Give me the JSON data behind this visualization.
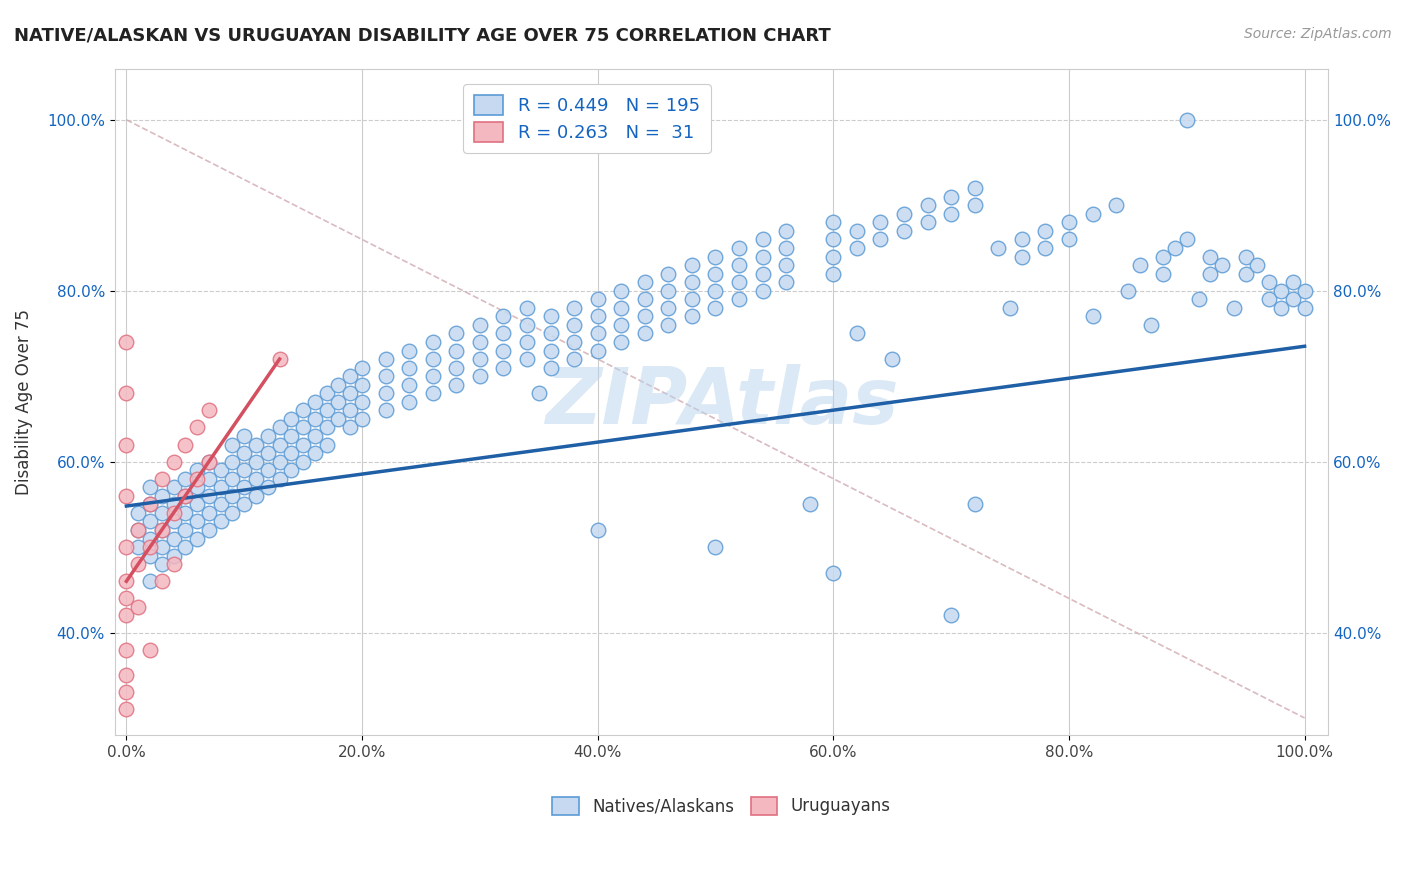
{
  "title": "NATIVE/ALASKAN VS URUGUAYAN DISABILITY AGE OVER 75 CORRELATION CHART",
  "source": "Source: ZipAtlas.com",
  "ylabel": "Disability Age Over 75",
  "xlim": [
    -0.01,
    1.02
  ],
  "ylim": [
    0.28,
    1.06
  ],
  "xtick_labels": [
    "0.0%",
    "20.0%",
    "40.0%",
    "60.0%",
    "80.0%",
    "100.0%"
  ],
  "xtick_values": [
    0.0,
    0.2,
    0.4,
    0.6,
    0.8,
    1.0
  ],
  "ytick_labels": [
    "40.0%",
    "60.0%",
    "80.0%",
    "100.0%"
  ],
  "ytick_values": [
    0.4,
    0.6,
    0.8,
    1.0
  ],
  "blue_fill": "#c6d9f0",
  "blue_edge": "#5b9bd5",
  "pink_fill": "#f4b8c1",
  "pink_edge": "#e07080",
  "legend_blue_r": "0.449",
  "legend_blue_n": "195",
  "legend_pink_r": "0.263",
  "legend_pink_n": "31",
  "watermark": "ZIPAtlas",
  "blue_line_color": "#1f5fa6",
  "pink_line_color": "#d45060",
  "diagonal_color": "#d0aab0",
  "blue_trend_x": [
    0.0,
    1.0
  ],
  "blue_trend_y": [
    0.548,
    0.735
  ],
  "pink_trend_x": [
    0.0,
    0.13
  ],
  "pink_trend_y": [
    0.46,
    0.72
  ],
  "blue_scatter": [
    [
      0.01,
      0.52
    ],
    [
      0.01,
      0.5
    ],
    [
      0.01,
      0.54
    ],
    [
      0.02,
      0.49
    ],
    [
      0.02,
      0.51
    ],
    [
      0.02,
      0.53
    ],
    [
      0.02,
      0.55
    ],
    [
      0.02,
      0.57
    ],
    [
      0.02,
      0.46
    ],
    [
      0.03,
      0.52
    ],
    [
      0.03,
      0.5
    ],
    [
      0.03,
      0.54
    ],
    [
      0.03,
      0.56
    ],
    [
      0.03,
      0.48
    ],
    [
      0.04,
      0.53
    ],
    [
      0.04,
      0.55
    ],
    [
      0.04,
      0.51
    ],
    [
      0.04,
      0.57
    ],
    [
      0.04,
      0.49
    ],
    [
      0.05,
      0.54
    ],
    [
      0.05,
      0.52
    ],
    [
      0.05,
      0.56
    ],
    [
      0.05,
      0.58
    ],
    [
      0.05,
      0.5
    ],
    [
      0.06,
      0.55
    ],
    [
      0.06,
      0.53
    ],
    [
      0.06,
      0.57
    ],
    [
      0.06,
      0.59
    ],
    [
      0.06,
      0.51
    ],
    [
      0.07,
      0.56
    ],
    [
      0.07,
      0.54
    ],
    [
      0.07,
      0.58
    ],
    [
      0.07,
      0.6
    ],
    [
      0.07,
      0.52
    ],
    [
      0.08,
      0.57
    ],
    [
      0.08,
      0.55
    ],
    [
      0.08,
      0.59
    ],
    [
      0.08,
      0.53
    ],
    [
      0.09,
      0.58
    ],
    [
      0.09,
      0.56
    ],
    [
      0.09,
      0.6
    ],
    [
      0.09,
      0.54
    ],
    [
      0.09,
      0.62
    ],
    [
      0.1,
      0.59
    ],
    [
      0.1,
      0.57
    ],
    [
      0.1,
      0.61
    ],
    [
      0.1,
      0.55
    ],
    [
      0.1,
      0.63
    ],
    [
      0.11,
      0.6
    ],
    [
      0.11,
      0.58
    ],
    [
      0.11,
      0.62
    ],
    [
      0.11,
      0.56
    ],
    [
      0.12,
      0.61
    ],
    [
      0.12,
      0.59
    ],
    [
      0.12,
      0.63
    ],
    [
      0.12,
      0.57
    ],
    [
      0.13,
      0.62
    ],
    [
      0.13,
      0.6
    ],
    [
      0.13,
      0.64
    ],
    [
      0.13,
      0.58
    ],
    [
      0.14,
      0.63
    ],
    [
      0.14,
      0.61
    ],
    [
      0.14,
      0.65
    ],
    [
      0.14,
      0.59
    ],
    [
      0.15,
      0.64
    ],
    [
      0.15,
      0.62
    ],
    [
      0.15,
      0.66
    ],
    [
      0.15,
      0.6
    ],
    [
      0.16,
      0.65
    ],
    [
      0.16,
      0.63
    ],
    [
      0.16,
      0.67
    ],
    [
      0.16,
      0.61
    ],
    [
      0.17,
      0.66
    ],
    [
      0.17,
      0.64
    ],
    [
      0.17,
      0.68
    ],
    [
      0.17,
      0.62
    ],
    [
      0.18,
      0.67
    ],
    [
      0.18,
      0.65
    ],
    [
      0.18,
      0.69
    ],
    [
      0.19,
      0.68
    ],
    [
      0.19,
      0.66
    ],
    [
      0.19,
      0.7
    ],
    [
      0.19,
      0.64
    ],
    [
      0.2,
      0.69
    ],
    [
      0.2,
      0.67
    ],
    [
      0.2,
      0.71
    ],
    [
      0.2,
      0.65
    ],
    [
      0.22,
      0.7
    ],
    [
      0.22,
      0.68
    ],
    [
      0.22,
      0.72
    ],
    [
      0.22,
      0.66
    ],
    [
      0.24,
      0.71
    ],
    [
      0.24,
      0.69
    ],
    [
      0.24,
      0.73
    ],
    [
      0.24,
      0.67
    ],
    [
      0.26,
      0.72
    ],
    [
      0.26,
      0.7
    ],
    [
      0.26,
      0.74
    ],
    [
      0.26,
      0.68
    ],
    [
      0.28,
      0.73
    ],
    [
      0.28,
      0.71
    ],
    [
      0.28,
      0.75
    ],
    [
      0.28,
      0.69
    ],
    [
      0.3,
      0.74
    ],
    [
      0.3,
      0.72
    ],
    [
      0.3,
      0.76
    ],
    [
      0.3,
      0.7
    ],
    [
      0.32,
      0.75
    ],
    [
      0.32,
      0.73
    ],
    [
      0.32,
      0.77
    ],
    [
      0.32,
      0.71
    ],
    [
      0.34,
      0.76
    ],
    [
      0.34,
      0.74
    ],
    [
      0.34,
      0.78
    ],
    [
      0.34,
      0.72
    ],
    [
      0.35,
      0.68
    ],
    [
      0.36,
      0.75
    ],
    [
      0.36,
      0.73
    ],
    [
      0.36,
      0.77
    ],
    [
      0.36,
      0.71
    ],
    [
      0.38,
      0.76
    ],
    [
      0.38,
      0.74
    ],
    [
      0.38,
      0.78
    ],
    [
      0.38,
      0.72
    ],
    [
      0.4,
      0.77
    ],
    [
      0.4,
      0.75
    ],
    [
      0.4,
      0.79
    ],
    [
      0.4,
      0.73
    ],
    [
      0.42,
      0.78
    ],
    [
      0.42,
      0.76
    ],
    [
      0.42,
      0.8
    ],
    [
      0.42,
      0.74
    ],
    [
      0.44,
      0.79
    ],
    [
      0.44,
      0.77
    ],
    [
      0.44,
      0.81
    ],
    [
      0.44,
      0.75
    ],
    [
      0.46,
      0.8
    ],
    [
      0.46,
      0.78
    ],
    [
      0.46,
      0.82
    ],
    [
      0.46,
      0.76
    ],
    [
      0.48,
      0.81
    ],
    [
      0.48,
      0.79
    ],
    [
      0.48,
      0.83
    ],
    [
      0.48,
      0.77
    ],
    [
      0.5,
      0.82
    ],
    [
      0.5,
      0.8
    ],
    [
      0.5,
      0.84
    ],
    [
      0.5,
      0.78
    ],
    [
      0.52,
      0.83
    ],
    [
      0.52,
      0.81
    ],
    [
      0.52,
      0.85
    ],
    [
      0.52,
      0.79
    ],
    [
      0.54,
      0.84
    ],
    [
      0.54,
      0.82
    ],
    [
      0.54,
      0.86
    ],
    [
      0.54,
      0.8
    ],
    [
      0.56,
      0.85
    ],
    [
      0.56,
      0.83
    ],
    [
      0.56,
      0.87
    ],
    [
      0.56,
      0.81
    ],
    [
      0.58,
      0.55
    ],
    [
      0.6,
      0.86
    ],
    [
      0.6,
      0.84
    ],
    [
      0.6,
      0.88
    ],
    [
      0.6,
      0.82
    ],
    [
      0.62,
      0.87
    ],
    [
      0.62,
      0.85
    ],
    [
      0.62,
      0.75
    ],
    [
      0.64,
      0.88
    ],
    [
      0.64,
      0.86
    ],
    [
      0.65,
      0.72
    ],
    [
      0.66,
      0.89
    ],
    [
      0.66,
      0.87
    ],
    [
      0.68,
      0.9
    ],
    [
      0.68,
      0.88
    ],
    [
      0.7,
      0.91
    ],
    [
      0.7,
      0.89
    ],
    [
      0.72,
      0.92
    ],
    [
      0.72,
      0.9
    ],
    [
      0.74,
      0.85
    ],
    [
      0.75,
      0.78
    ],
    [
      0.76,
      0.86
    ],
    [
      0.76,
      0.84
    ],
    [
      0.78,
      0.87
    ],
    [
      0.78,
      0.85
    ],
    [
      0.8,
      0.88
    ],
    [
      0.8,
      0.86
    ],
    [
      0.82,
      0.77
    ],
    [
      0.82,
      0.89
    ],
    [
      0.84,
      0.9
    ],
    [
      0.85,
      0.8
    ],
    [
      0.86,
      0.83
    ],
    [
      0.87,
      0.76
    ],
    [
      0.88,
      0.84
    ],
    [
      0.88,
      0.82
    ],
    [
      0.89,
      0.85
    ],
    [
      0.9,
      0.86
    ],
    [
      0.9,
      1.0
    ],
    [
      0.91,
      0.79
    ],
    [
      0.92,
      0.84
    ],
    [
      0.92,
      0.82
    ],
    [
      0.93,
      0.83
    ],
    [
      0.94,
      0.78
    ],
    [
      0.95,
      0.84
    ],
    [
      0.95,
      0.82
    ],
    [
      0.96,
      0.83
    ],
    [
      0.97,
      0.81
    ],
    [
      0.97,
      0.79
    ],
    [
      0.98,
      0.8
    ],
    [
      0.98,
      0.78
    ],
    [
      0.99,
      0.81
    ],
    [
      0.99,
      0.79
    ],
    [
      1.0,
      0.8
    ],
    [
      1.0,
      0.78
    ],
    [
      0.72,
      0.55
    ],
    [
      0.4,
      0.52
    ],
    [
      0.5,
      0.5
    ],
    [
      0.6,
      0.47
    ],
    [
      0.7,
      0.42
    ]
  ],
  "pink_scatter": [
    [
      0.0,
      0.74
    ],
    [
      0.0,
      0.68
    ],
    [
      0.0,
      0.62
    ],
    [
      0.0,
      0.56
    ],
    [
      0.0,
      0.5
    ],
    [
      0.0,
      0.46
    ],
    [
      0.0,
      0.44
    ],
    [
      0.0,
      0.42
    ],
    [
      0.0,
      0.38
    ],
    [
      0.0,
      0.35
    ],
    [
      0.0,
      0.33
    ],
    [
      0.0,
      0.31
    ],
    [
      0.01,
      0.52
    ],
    [
      0.01,
      0.48
    ],
    [
      0.01,
      0.43
    ],
    [
      0.02,
      0.55
    ],
    [
      0.02,
      0.5
    ],
    [
      0.02,
      0.38
    ],
    [
      0.03,
      0.58
    ],
    [
      0.03,
      0.52
    ],
    [
      0.03,
      0.46
    ],
    [
      0.04,
      0.6
    ],
    [
      0.04,
      0.54
    ],
    [
      0.04,
      0.48
    ],
    [
      0.05,
      0.62
    ],
    [
      0.05,
      0.56
    ],
    [
      0.06,
      0.64
    ],
    [
      0.06,
      0.58
    ],
    [
      0.07,
      0.66
    ],
    [
      0.07,
      0.6
    ],
    [
      0.13,
      0.72
    ]
  ]
}
